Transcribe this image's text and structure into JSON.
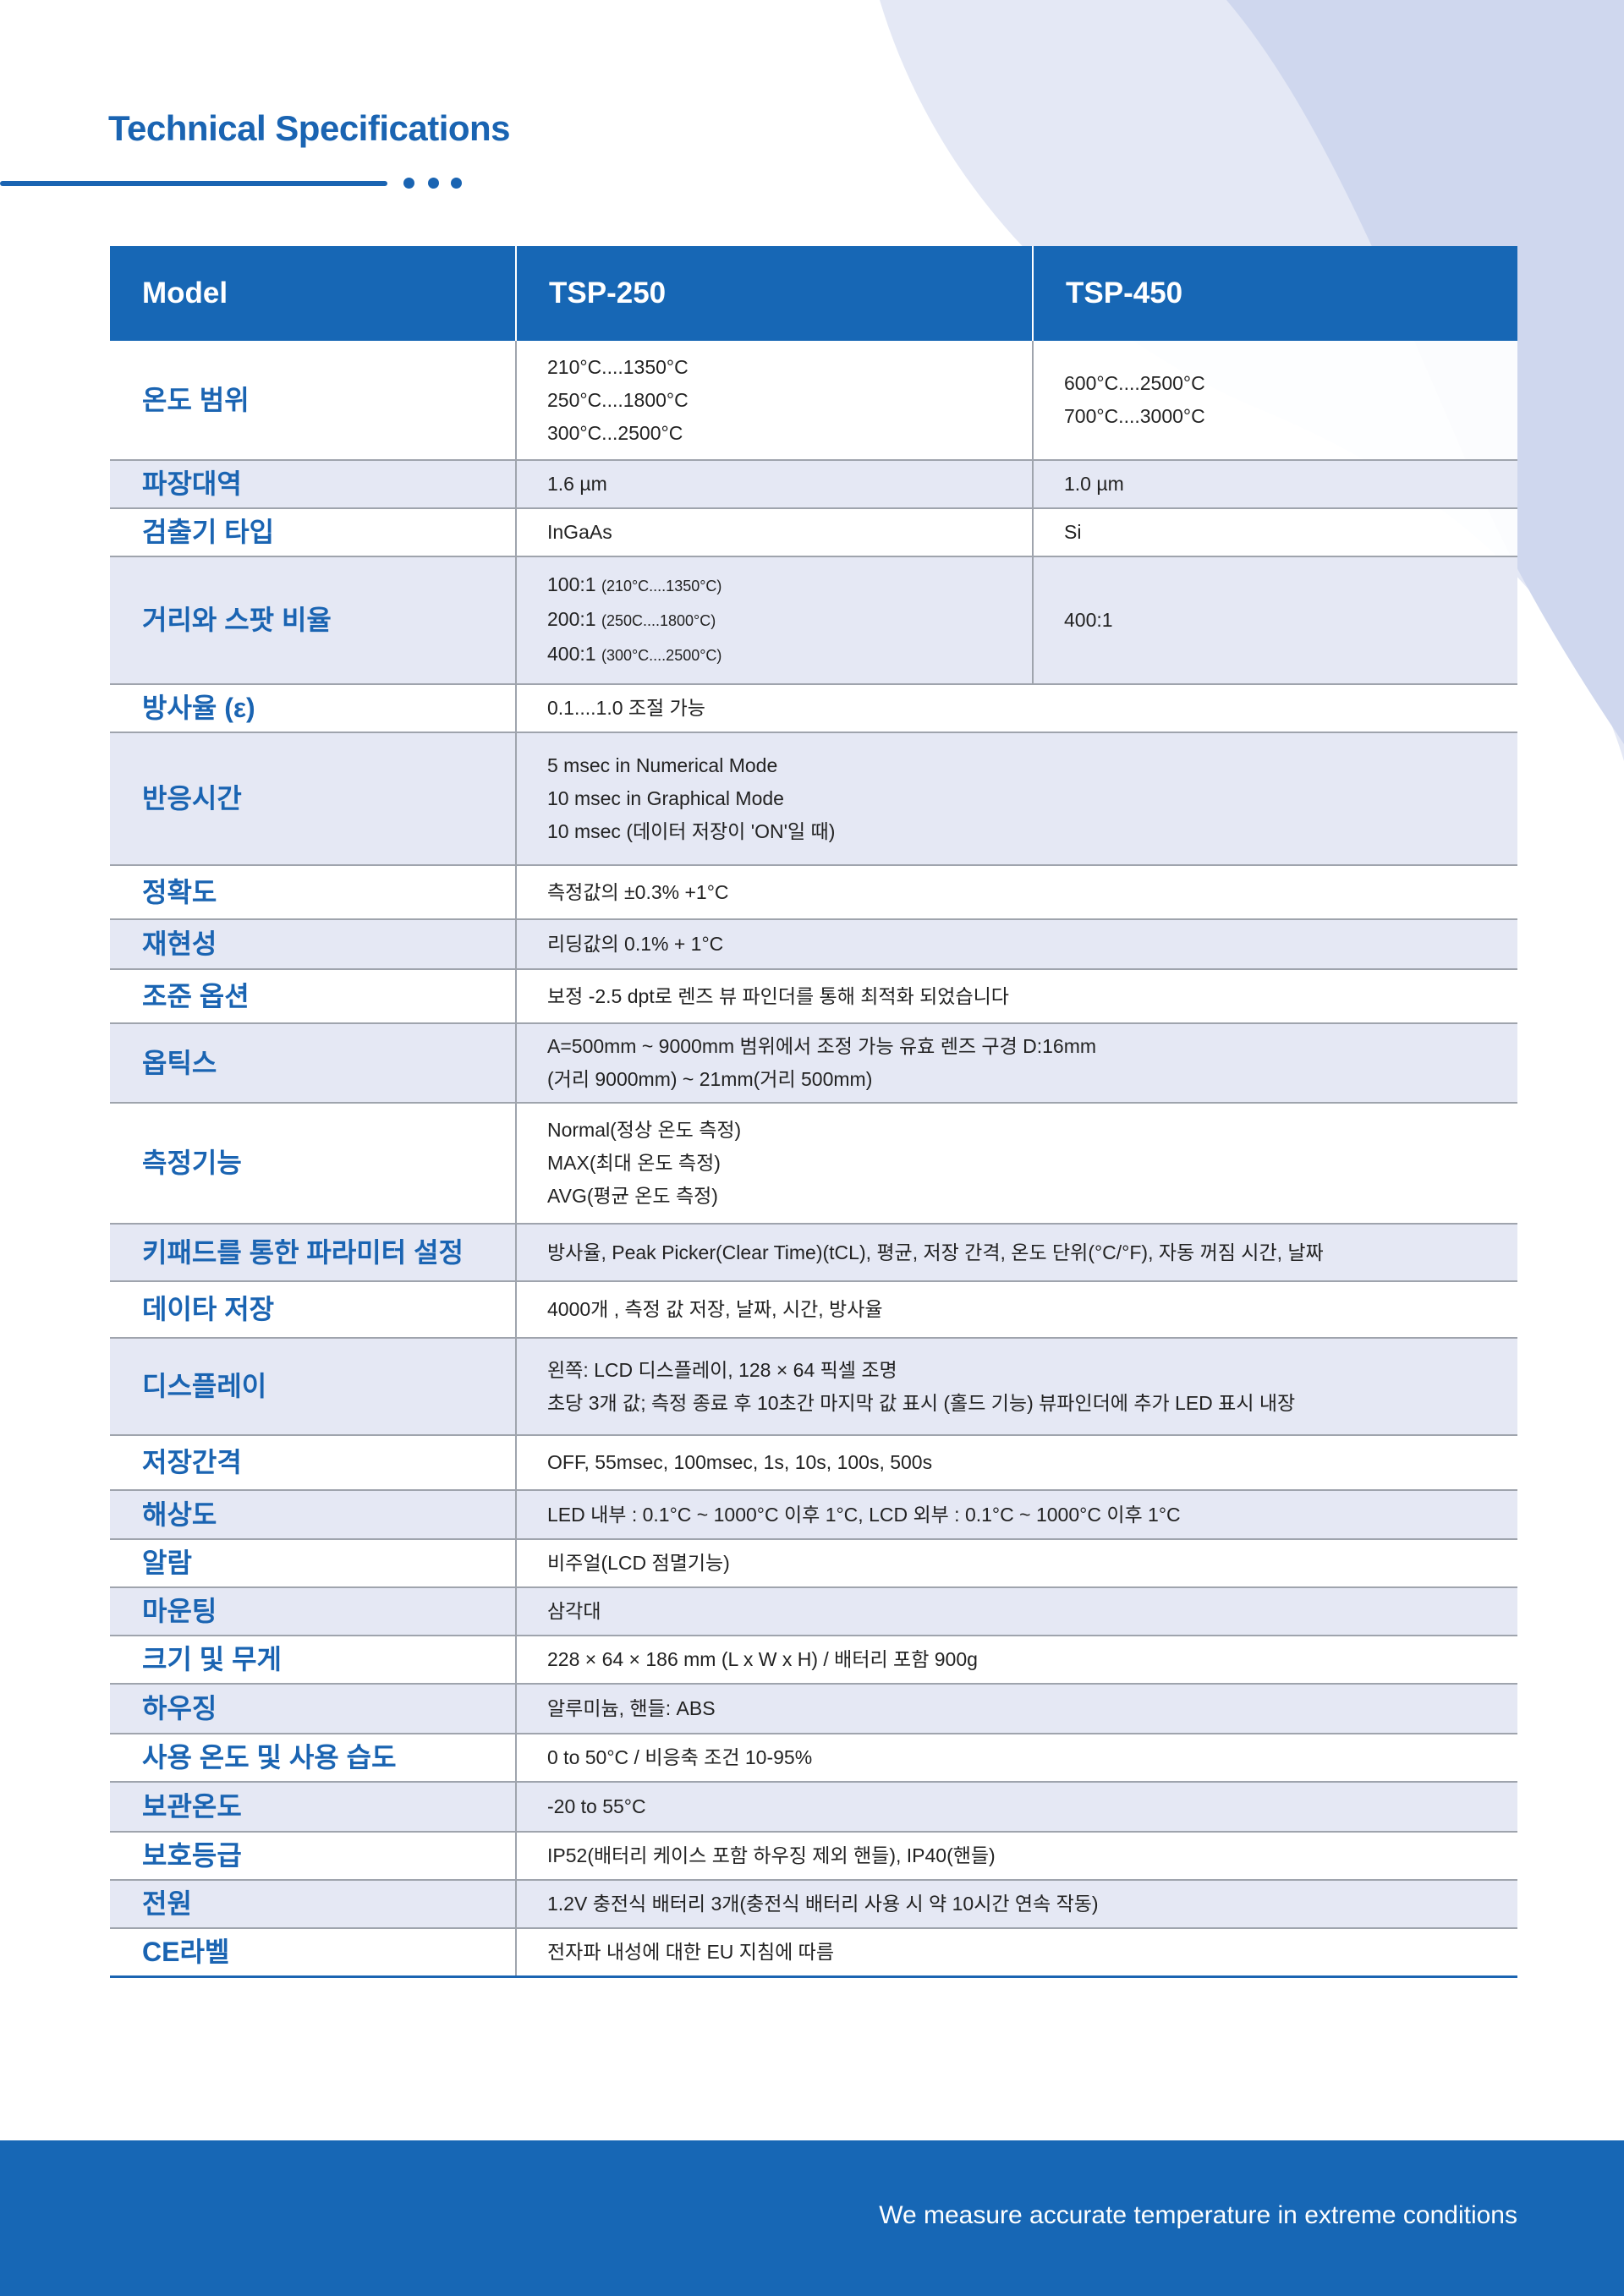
{
  "title": "Technical Specifications",
  "colors": {
    "brand_blue": "#1767b5",
    "row_alt": "#e5e8f4",
    "border": "#9fa4ad"
  },
  "header": {
    "col1": "Model",
    "col2": "TSP-250",
    "col3": "TSP-450"
  },
  "rows": [
    {
      "label": "온도 범위",
      "tsp250": [
        "210°C....1350°C",
        "250°C....1800°C",
        "300°C...2500°C"
      ],
      "tsp450": [
        "600°C....2500°C",
        "700°C....3000°C"
      ]
    },
    {
      "label": "파장대역",
      "tsp250": [
        "1.6 µm"
      ],
      "tsp450": [
        "1.0 µm"
      ]
    },
    {
      "label": "검출기 타입",
      "tsp250": [
        "InGaAs"
      ],
      "tsp450": [
        "Si"
      ]
    },
    {
      "label": "거리와 스팟 비율",
      "tsp250": [
        {
          "main": "100:1",
          "note": "(210°C....1350°C)"
        },
        {
          "main": "200:1",
          "note": "(250C....1800°C)"
        },
        {
          "main": "400:1",
          "note": "(300°C....2500°C)"
        }
      ],
      "tsp450": [
        "400:1"
      ]
    },
    {
      "label": "방사율 (ε)",
      "value": [
        "0.1....1.0 조절 가능"
      ]
    },
    {
      "label": "반응시간",
      "value": [
        "5 msec in Numerical Mode",
        "10 msec in Graphical Mode",
        "10 msec (데이터 저장이 'ON'일 때)"
      ]
    },
    {
      "label": "정확도",
      "value": [
        "측정값의 ±0.3% +1°C"
      ]
    },
    {
      "label": "재현성",
      "value": [
        "리딩값의 0.1% + 1°C"
      ]
    },
    {
      "label": "조준 옵션",
      "value": [
        "보정 -2.5 dpt로 렌즈 뷰 파인더를 통해 최적화 되었습니다"
      ]
    },
    {
      "label": "옵틱스",
      "value": [
        "A=500mm ~ 9000mm 범위에서 조정 가능 유효 렌즈 구경 D:16mm",
        "(거리 9000mm) ~ 21mm(거리 500mm)"
      ]
    },
    {
      "label": "측정기능",
      "value": [
        "Normal(정상 온도 측정)",
        "MAX(최대 온도 측정)",
        "AVG(평균 온도 측정)"
      ]
    },
    {
      "label": "키패드를 통한 파라미터 설정",
      "value": [
        "방사율, Peak Picker(Clear Time)(tCL), 평균, 저장 간격, 온도 단위(°C/°F), 자동 꺼짐 시간, 날짜"
      ]
    },
    {
      "label": "데이타 저장",
      "value": [
        "4000개 , 측정 값 저장, 날짜, 시간, 방사율"
      ]
    },
    {
      "label": "디스플레이",
      "value": [
        "왼쪽: LCD 디스플레이, 128 × 64 픽셀 조명",
        "초당 3개 값; 측정 종료 후 10초간 마지막 값 표시 (홀드 기능) 뷰파인더에 추가 LED 표시 내장"
      ]
    },
    {
      "label": "저장간격",
      "value": [
        "OFF, 55msec, 100msec, 1s, 10s, 100s, 500s"
      ]
    },
    {
      "label": "해상도",
      "value": [
        "LED 내부 : 0.1°C ~ 1000°C 이후 1°C, LCD 외부 : 0.1°C ~ 1000°C 이후 1°C"
      ]
    },
    {
      "label": "알람",
      "value": [
        "비주얼(LCD 점멸기능)"
      ]
    },
    {
      "label": "마운팅",
      "value": [
        "삼각대"
      ]
    },
    {
      "label": "크기 및 무게",
      "value": [
        "228 × 64 × 186 mm (L x W x H) / 배터리 포함 900g"
      ]
    },
    {
      "label": "하우징",
      "value": [
        "알루미늄, 핸들: ABS"
      ]
    },
    {
      "label": "사용 온도 및 사용 습도",
      "value": [
        "0 to 50°C / 비응축 조건 10-95%"
      ]
    },
    {
      "label": "보관온도",
      "value": [
        "-20 to 55°C"
      ]
    },
    {
      "label": "보호등급",
      "value": [
        "IP52(배터리 케이스 포함 하우징 제외 핸들), IP40(핸들)"
      ]
    },
    {
      "label": "전원",
      "value": [
        "1.2V 충전식 배터리 3개(충전식 배터리 사용 시 약 10시간 연속 작동)"
      ]
    },
    {
      "label": "CE라벨",
      "value": [
        "전자파 내성에 대한 EU 지침에 따름"
      ]
    }
  ],
  "footer": {
    "tagline": "We measure accurate temperature in extreme conditions"
  }
}
